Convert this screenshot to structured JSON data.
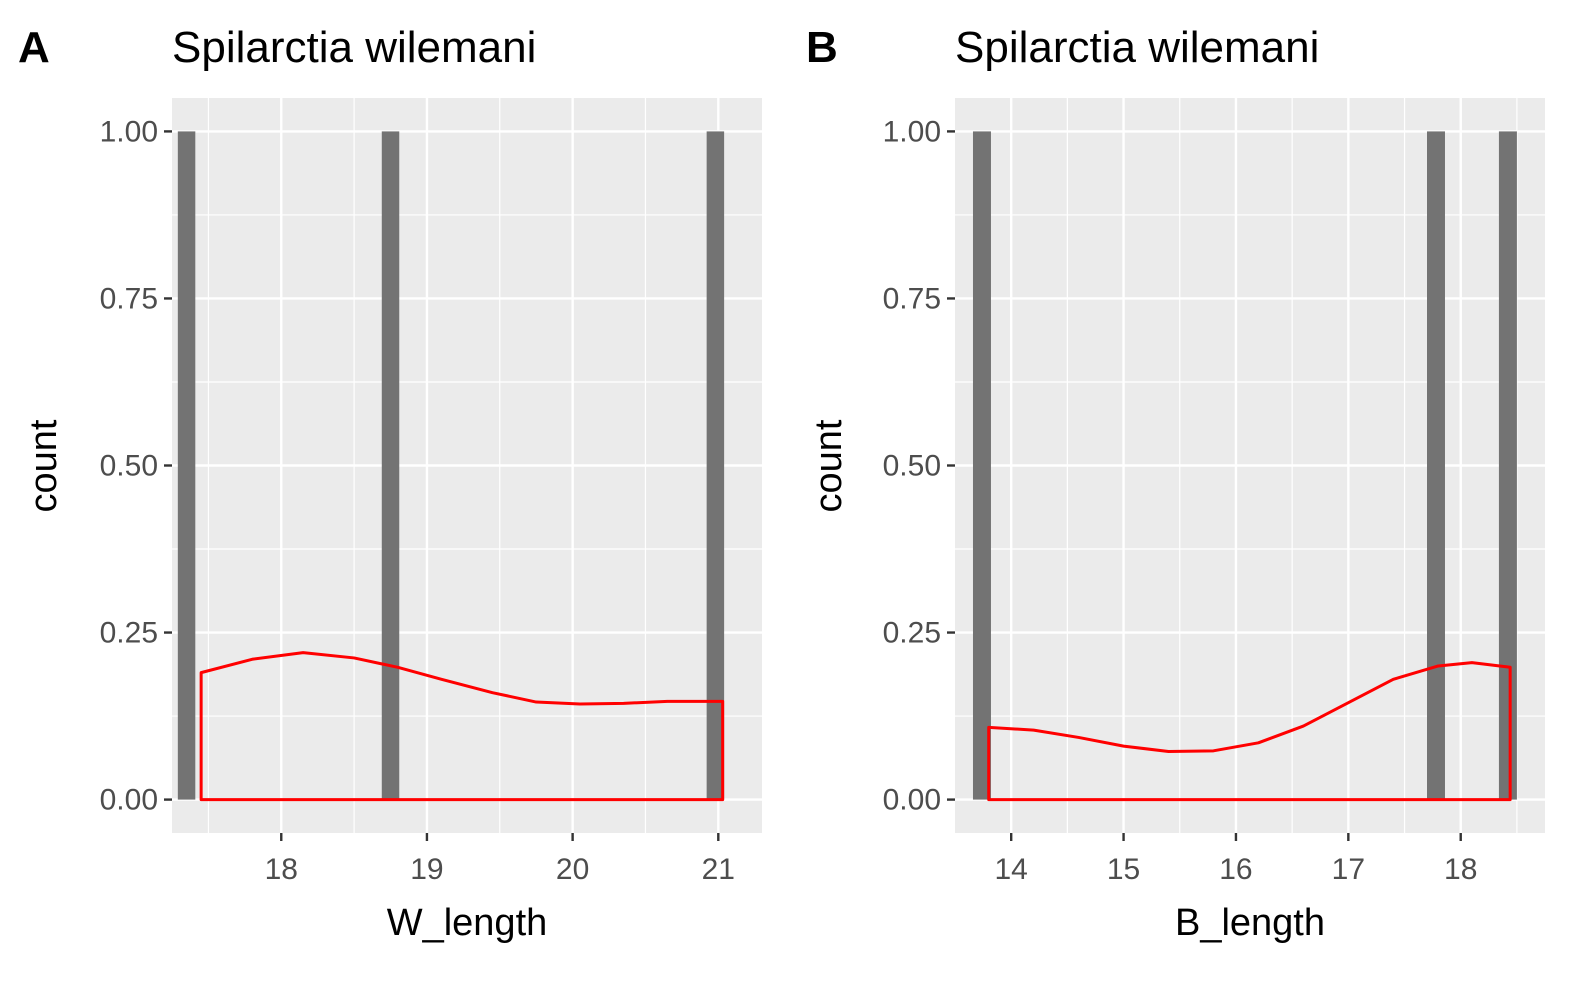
{
  "chart_data": [
    {
      "type": "bar",
      "panel_label": "A",
      "title": "Spilarctia wilemani",
      "xlabel": "W_length",
      "ylabel": "count",
      "xlim": [
        17.25,
        21.3
      ],
      "ylim": [
        -0.05,
        1.05
      ],
      "x_ticks": [
        18,
        19,
        20,
        21
      ],
      "x_tick_labels": [
        "18",
        "19",
        "20",
        "21"
      ],
      "y_ticks": [
        0,
        0.25,
        0.5,
        0.75,
        1
      ],
      "y_tick_labels": [
        "0.00",
        "0.25",
        "0.50",
        "0.75",
        "1.00"
      ],
      "grid": true,
      "bar_width": 0.12,
      "bars": [
        {
          "x": 17.35,
          "count": 1
        },
        {
          "x": 18.75,
          "count": 1
        },
        {
          "x": 20.98,
          "count": 1
        }
      ],
      "density_color": "#ff0000",
      "density_curve": {
        "x": [
          17.45,
          17.8,
          18.15,
          18.5,
          18.8,
          19.1,
          19.45,
          19.75,
          20.05,
          20.35,
          20.65,
          21.03
        ],
        "y": [
          0.19,
          0.21,
          0.22,
          0.212,
          0.198,
          0.18,
          0.16,
          0.146,
          0.143,
          0.144,
          0.147,
          0.147
        ]
      }
    },
    {
      "type": "bar",
      "panel_label": "B",
      "title": "Spilarctia wilemani",
      "xlabel": "B_length",
      "ylabel": "count",
      "xlim": [
        13.5,
        18.75
      ],
      "ylim": [
        -0.05,
        1.05
      ],
      "x_ticks": [
        14,
        15,
        16,
        17,
        18
      ],
      "x_tick_labels": [
        "14",
        "15",
        "16",
        "17",
        "18"
      ],
      "y_ticks": [
        0,
        0.25,
        0.5,
        0.75,
        1
      ],
      "y_tick_labels": [
        "0.00",
        "0.25",
        "0.50",
        "0.75",
        "1.00"
      ],
      "grid": true,
      "bar_width": 0.16,
      "bars": [
        {
          "x": 13.74,
          "count": 1
        },
        {
          "x": 17.78,
          "count": 1
        },
        {
          "x": 18.42,
          "count": 1
        }
      ],
      "density_color": "#ff0000",
      "density_curve": {
        "x": [
          13.8,
          14.2,
          14.6,
          15.0,
          15.4,
          15.8,
          16.2,
          16.6,
          17.0,
          17.4,
          17.8,
          18.1,
          18.44
        ],
        "y": [
          0.108,
          0.104,
          0.093,
          0.08,
          0.072,
          0.073,
          0.085,
          0.11,
          0.145,
          0.18,
          0.2,
          0.205,
          0.198
        ]
      }
    }
  ]
}
